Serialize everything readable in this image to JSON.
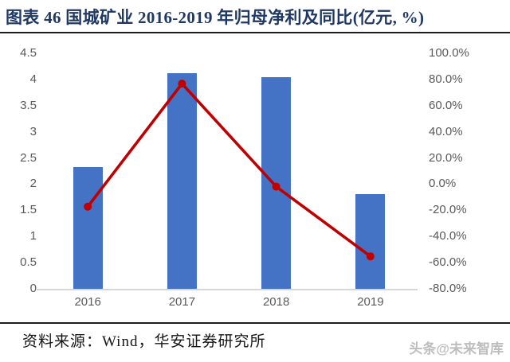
{
  "title": "图表 46 国城矿业 2016-2019 年归母净利及同比(亿元, %)",
  "source": "资料来源：Wind，华安证券研究所",
  "watermark": "头条@未来智库",
  "colors": {
    "bar": "#4472C4",
    "line": "#C00000",
    "title_text": "#1F3864",
    "axis_text": "#595959",
    "axis_line": "#d6d6d6",
    "rule": "#1c1c1c",
    "watermark_text": "#bdbdbd"
  },
  "chart_data": {
    "type": "bar",
    "subtype": "bar+line dual axis",
    "categories": [
      "2016",
      "2017",
      "2018",
      "2019"
    ],
    "series": [
      {
        "name": "归母净利(亿元)",
        "type": "bar",
        "axis": "left",
        "color": "#4472C4",
        "values": [
          2.33,
          4.12,
          4.04,
          1.81
        ]
      },
      {
        "name": "同比(%)",
        "type": "line",
        "axis": "right",
        "color": "#C00000",
        "values": [
          -17.2,
          76.8,
          -1.9,
          -55.2
        ]
      }
    ],
    "title": "国城矿业 2016-2019 年归母净利及同比(亿元, %)",
    "xlabel": "",
    "ylabel": "",
    "left_axis": {
      "min": 0,
      "max": 4.5,
      "step": 0.5,
      "tick_labels": [
        "4.5",
        "4",
        "3.5",
        "3",
        "2.5",
        "2",
        "1.5",
        "1",
        "0.5",
        "0"
      ],
      "tick_values": [
        4.5,
        4,
        3.5,
        3,
        2.5,
        2,
        1.5,
        1,
        0.5,
        0
      ]
    },
    "right_axis": {
      "min": -80,
      "max": 100,
      "step": 20,
      "tick_labels": [
        "100.0%",
        "80.0%",
        "60.0%",
        "40.0%",
        "20.0%",
        "0.0%",
        "-20.0%",
        "-40.0%",
        "-60.0%",
        "-80.0%"
      ],
      "tick_values": [
        100,
        80,
        60,
        40,
        20,
        0,
        -20,
        -40,
        -60,
        -80
      ]
    },
    "grid": false,
    "legend": "none",
    "plot_background": "#ffffff"
  }
}
